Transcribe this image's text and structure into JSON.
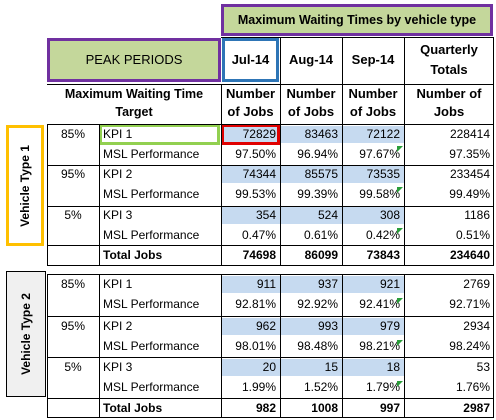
{
  "header": {
    "title": "Maximum Waiting Times by vehicle type",
    "peak_periods": "PEAK PERIODS",
    "months": [
      "Jul-14",
      "Aug-14",
      "Sep-14"
    ],
    "quarterly_line1": "Quarterly",
    "quarterly_line2": "Totals",
    "target_line1": "Maximum Waiting Time",
    "target_line2": "Target",
    "jobs_line1": "Number",
    "jobs_line2": "of Jobs",
    "total_jobs_line1": "Number of",
    "total_jobs_line2": "Jobs"
  },
  "vehicle_type_1": {
    "label": "Vehicle Type 1",
    "groups": [
      {
        "pct": "85%",
        "kpi": "KPI 1",
        "jobs": [
          "72829",
          "83463",
          "72122",
          "228414"
        ],
        "msl_label": "MSL Performance",
        "msl": [
          "97.50%",
          "96.94%",
          "97.67%",
          "97.35%"
        ]
      },
      {
        "pct": "95%",
        "kpi": "KPI 2",
        "jobs": [
          "74344",
          "85575",
          "73535",
          "233454"
        ],
        "msl_label": "MSL Performance",
        "msl": [
          "99.53%",
          "99.39%",
          "99.58%",
          "99.49%"
        ]
      },
      {
        "pct": "5%",
        "kpi": "KPI 3",
        "jobs": [
          "354",
          "524",
          "308",
          "1186"
        ],
        "msl_label": "MSL Performance",
        "msl": [
          "0.47%",
          "0.61%",
          "0.42%",
          "0.51%"
        ]
      }
    ],
    "total_label": "Total Jobs",
    "totals": [
      "74698",
      "86099",
      "73843",
      "234640"
    ]
  },
  "vehicle_type_2": {
    "label": "Vehicle Type 2",
    "groups": [
      {
        "pct": "85%",
        "kpi": "KPI 1",
        "jobs": [
          "911",
          "937",
          "921",
          "2769"
        ],
        "msl_label": "MSL Performance",
        "msl": [
          "92.81%",
          "92.92%",
          "92.41%",
          "92.71%"
        ]
      },
      {
        "pct": "95%",
        "kpi": "KPI 2",
        "jobs": [
          "962",
          "993",
          "979",
          "2934"
        ],
        "msl_label": "MSL Performance",
        "msl": [
          "98.01%",
          "98.48%",
          "98.21%",
          "98.24%"
        ]
      },
      {
        "pct": "5%",
        "kpi": "KPI 3",
        "jobs": [
          "20",
          "15",
          "18",
          "53"
        ],
        "msl_label": "MSL Performance",
        "msl": [
          "1.99%",
          "1.52%",
          "1.79%",
          "1.76%"
        ]
      }
    ],
    "total_label": "Total Jobs",
    "totals": [
      "982",
      "1008",
      "997",
      "2987"
    ]
  },
  "colors": {
    "header_green": "#c4d79b",
    "purple_border": "#7030a0",
    "jul_border": "#2e75b6",
    "kpi_cell_green": "#92d050",
    "selected_red": "#e00000",
    "vt1_border": "#ffc000",
    "data_blue": "#c6daf0"
  }
}
